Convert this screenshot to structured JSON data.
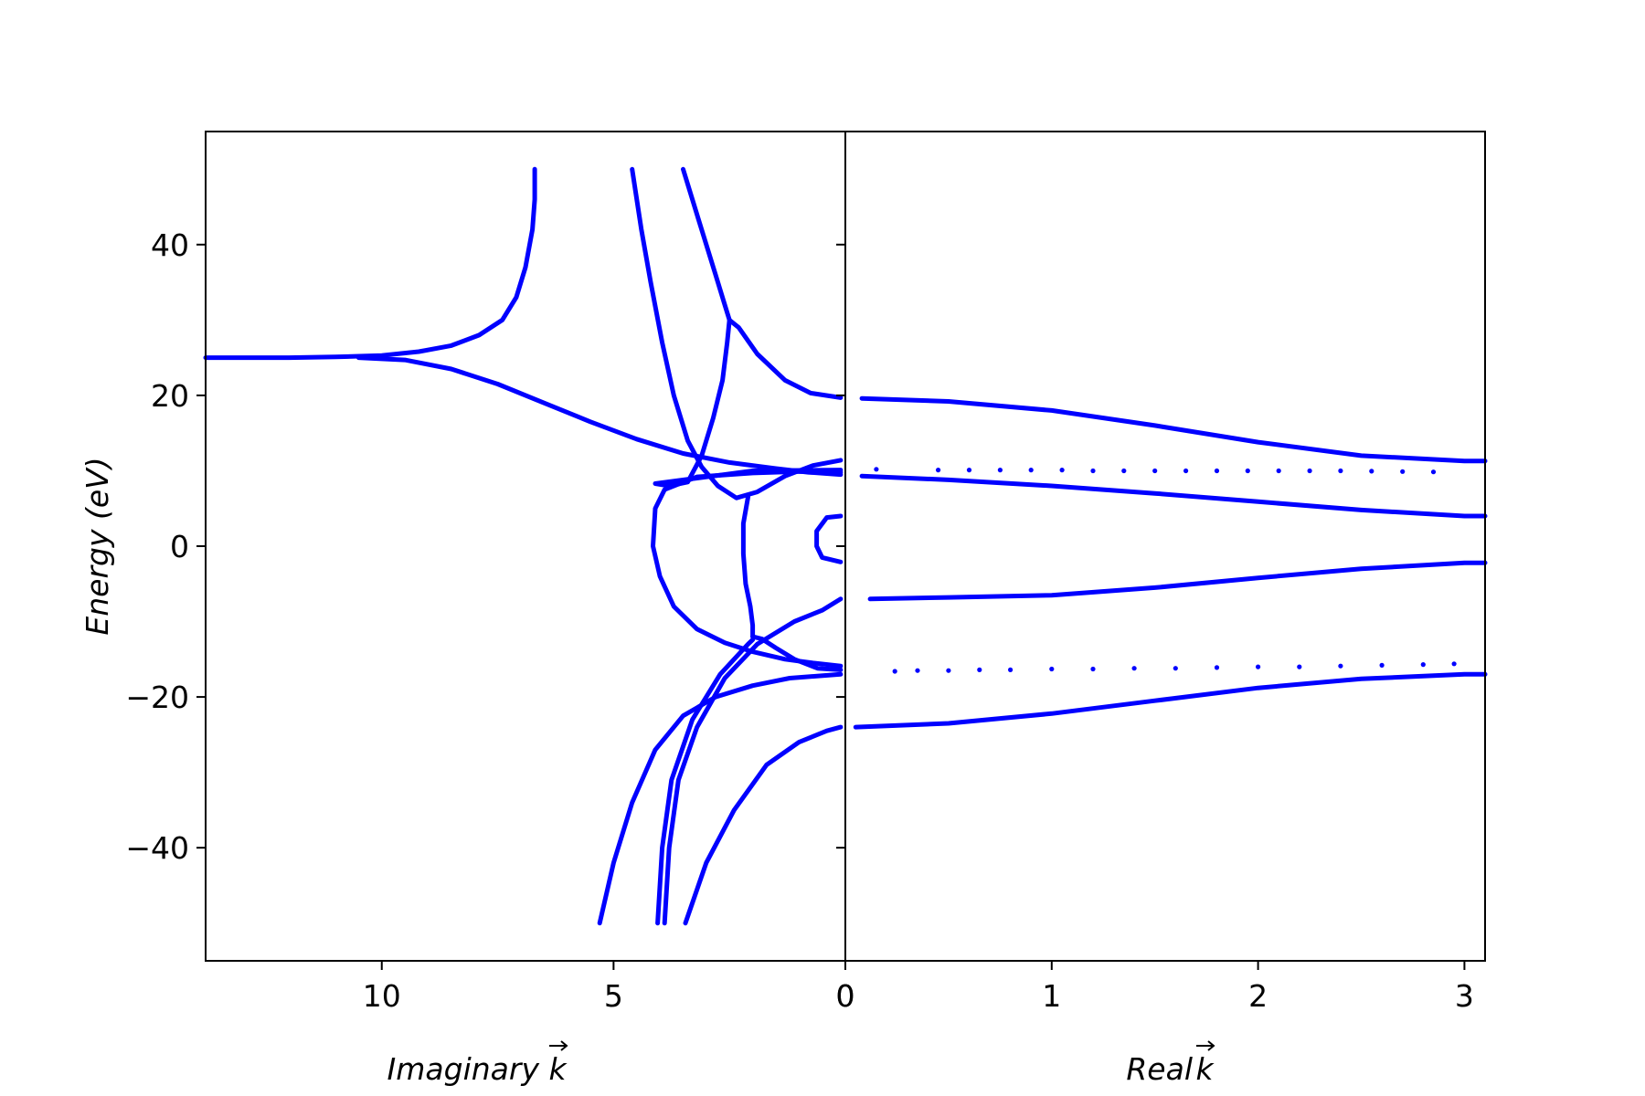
{
  "chart_data": [
    {
      "panel": "left",
      "type": "scatter",
      "xlabel": "Imaginary",
      "xlabel_vector": "k",
      "ylabel": "Energy (eV)",
      "xlim": [
        13.8,
        0
      ],
      "ylim": [
        -55,
        55
      ],
      "x_ticks": [
        10,
        5,
        0
      ],
      "x_tick_labels": [
        "10",
        "5",
        "0"
      ],
      "y_ticks": [
        40,
        20,
        0,
        -20,
        -40
      ],
      "y_tick_labels": [
        "40",
        "20",
        "0",
        "−20",
        "−40"
      ],
      "grid": false,
      "series": [
        {
          "points": [
            [
              6.7,
              50
            ],
            [
              6.7,
              46
            ],
            [
              6.75,
              42
            ],
            [
              6.9,
              37
            ],
            [
              7.1,
              33
            ],
            [
              7.4,
              30
            ],
            [
              7.9,
              28
            ],
            [
              8.5,
              26.6
            ],
            [
              9.2,
              25.8
            ],
            [
              10,
              25.3
            ],
            [
              11,
              25.1
            ],
            [
              12,
              25
            ],
            [
              12.6,
              25
            ],
            [
              13,
              25
            ],
            [
              13.4,
              25
            ],
            [
              13.8,
              25
            ]
          ]
        },
        {
          "points": [
            [
              10.5,
              25
            ],
            [
              9.5,
              24.7
            ],
            [
              8.5,
              23.5
            ],
            [
              7.5,
              21.5
            ],
            [
              6.5,
              19
            ],
            [
              5.5,
              16.5
            ],
            [
              4.5,
              14.2
            ],
            [
              3.5,
              12.3
            ],
            [
              2.5,
              11.1
            ],
            [
              1.5,
              10.3
            ],
            [
              0.8,
              9.8
            ],
            [
              0.1,
              9.5
            ]
          ]
        },
        {
          "points": [
            [
              4.6,
              50
            ],
            [
              4.4,
              42
            ],
            [
              4.2,
              35
            ],
            [
              3.95,
              27
            ],
            [
              3.7,
              20
            ],
            [
              3.4,
              14
            ],
            [
              3.1,
              10.5
            ],
            [
              2.75,
              8
            ],
            [
              2.35,
              6.4
            ],
            [
              1.9,
              7.2
            ],
            [
              1.3,
              9.3
            ],
            [
              0.7,
              10.7
            ],
            [
              0.1,
              11.4
            ]
          ]
        },
        {
          "points": [
            [
              3.5,
              50
            ],
            [
              3.15,
              43
            ],
            [
              2.8,
              36
            ],
            [
              2.6,
              32
            ],
            [
              2.5,
              30
            ],
            [
              2.55,
              27
            ],
            [
              2.65,
              22
            ],
            [
              2.85,
              17
            ],
            [
              3.1,
              12
            ],
            [
              3.4,
              8.5
            ],
            [
              3.8,
              8
            ],
            [
              4.1,
              8.3
            ],
            [
              2,
              10
            ],
            [
              0.1,
              10.1
            ]
          ]
        },
        {
          "points": [
            [
              2.5,
              30
            ],
            [
              2.3,
              29
            ],
            [
              1.9,
              25.5
            ],
            [
              1.3,
              22
            ],
            [
              0.75,
              20.3
            ],
            [
              0.1,
              19.7
            ]
          ]
        },
        {
          "points": [
            [
              0.1,
              9.8
            ],
            [
              1.0,
              9.9
            ],
            [
              2.0,
              9.7
            ],
            [
              3.2,
              9.2
            ],
            [
              3.9,
              7.5
            ],
            [
              4.1,
              5
            ],
            [
              4.15,
              0
            ],
            [
              4,
              -4
            ],
            [
              3.7,
              -8
            ],
            [
              3.2,
              -11
            ],
            [
              2.6,
              -12.8
            ],
            [
              2,
              -14
            ],
            [
              1.3,
              -15
            ],
            [
              0.7,
              -15.5
            ],
            [
              0.1,
              -15.9
            ]
          ]
        },
        {
          "points": [
            [
              2.1,
              6.5
            ],
            [
              2.2,
              3
            ],
            [
              2.2,
              -1
            ],
            [
              2.15,
              -5
            ],
            [
              2.05,
              -8
            ],
            [
              2.0,
              -10.5
            ],
            [
              2.0,
              -12
            ]
          ]
        },
        {
          "points": [
            [
              2,
              -12
            ],
            [
              1.8,
              -12.3
            ],
            [
              1.5,
              -13.5
            ],
            [
              1.1,
              -15
            ],
            [
              0.6,
              -16.2
            ],
            [
              0.1,
              -16.4
            ]
          ]
        },
        {
          "points": [
            [
              0.1,
              4
            ],
            [
              0.4,
              3.8
            ],
            [
              0.62,
              2
            ],
            [
              0.62,
              0
            ],
            [
              0.5,
              -1.5
            ],
            [
              0.1,
              -2.1
            ]
          ]
        },
        {
          "points": [
            [
              5.3,
              -50
            ],
            [
              5.0,
              -42
            ],
            [
              4.6,
              -34
            ],
            [
              4.1,
              -27
            ],
            [
              3.5,
              -22.5
            ],
            [
              2.8,
              -20
            ],
            [
              2.0,
              -18.5
            ],
            [
              1.2,
              -17.5
            ],
            [
              0.1,
              -17
            ]
          ]
        },
        {
          "points": [
            [
              3.9,
              -50
            ],
            [
              3.8,
              -40
            ],
            [
              3.6,
              -31
            ],
            [
              3.2,
              -24
            ],
            [
              2.6,
              -17.5
            ],
            [
              1.9,
              -13
            ],
            [
              1.1,
              -10
            ],
            [
              0.5,
              -8.5
            ],
            [
              0.1,
              -7
            ]
          ]
        },
        {
          "points": [
            [
              4.05,
              -50
            ],
            [
              3.95,
              -40
            ],
            [
              3.75,
              -31
            ],
            [
              3.3,
              -23
            ],
            [
              2.7,
              -17
            ],
            [
              2.1,
              -13
            ],
            [
              2,
              -12.4
            ]
          ]
        },
        {
          "points": [
            [
              3.45,
              -50
            ],
            [
              3.0,
              -42
            ],
            [
              2.4,
              -35
            ],
            [
              1.7,
              -29
            ],
            [
              1.0,
              -26
            ],
            [
              0.4,
              -24.5
            ],
            [
              0.1,
              -24
            ]
          ]
        }
      ]
    },
    {
      "panel": "right",
      "type": "scatter",
      "xlabel": "Real",
      "xlabel_vector": "k",
      "xlim": [
        0,
        3.1
      ],
      "ylim": [
        -55,
        55
      ],
      "x_ticks": [
        0,
        1,
        2,
        3
      ],
      "x_tick_labels": [
        "0",
        "1",
        "2",
        "3"
      ],
      "grid": false,
      "series": [
        {
          "points": [
            [
              0.08,
              19.6
            ],
            [
              0.5,
              19.2
            ],
            [
              1,
              18
            ],
            [
              1.5,
              16
            ],
            [
              2,
              13.8
            ],
            [
              2.5,
              12
            ],
            [
              3,
              11.3
            ],
            [
              3.1,
              11.3
            ]
          ]
        },
        {
          "points": [
            [
              0.08,
              9.3
            ],
            [
              0.5,
              8.8
            ],
            [
              1,
              8
            ],
            [
              1.5,
              7
            ],
            [
              2,
              5.9
            ],
            [
              2.5,
              4.8
            ],
            [
              3,
              4
            ],
            [
              3.1,
              4
            ]
          ]
        },
        {
          "points": [
            [
              0.12,
              -7
            ],
            [
              0.5,
              -6.8
            ],
            [
              1,
              -6.5
            ],
            [
              1.5,
              -5.5
            ],
            [
              2,
              -4.2
            ],
            [
              2.5,
              -3
            ],
            [
              3,
              -2.2
            ],
            [
              3.1,
              -2.2
            ]
          ]
        },
        {
          "points": [
            [
              0.05,
              -24
            ],
            [
              0.5,
              -23.5
            ],
            [
              1,
              -22.2
            ],
            [
              1.5,
              -20.5
            ],
            [
              2,
              -18.8
            ],
            [
              2.5,
              -17.6
            ],
            [
              3,
              -17
            ],
            [
              3.1,
              -17
            ]
          ]
        },
        {
          "points": [
            [
              0.15,
              10.2
            ],
            [
              0.45,
              10.1
            ],
            [
              0.6,
              10.1
            ],
            [
              0.75,
              10.1
            ],
            [
              0.9,
              10.1
            ],
            [
              1.05,
              10.1
            ],
            [
              1.2,
              10
            ],
            [
              1.35,
              10
            ],
            [
              1.5,
              10
            ],
            [
              1.65,
              10
            ],
            [
              1.8,
              10
            ],
            [
              1.95,
              10
            ],
            [
              2.1,
              10
            ],
            [
              2.25,
              10
            ],
            [
              2.4,
              10
            ],
            [
              2.55,
              9.95
            ],
            [
              2.7,
              9.9
            ],
            [
              2.85,
              9.85
            ]
          ]
        },
        {
          "points": [
            [
              0.24,
              -16.6
            ],
            [
              0.35,
              -16.5
            ],
            [
              0.5,
              -16.5
            ],
            [
              0.65,
              -16.4
            ],
            [
              0.8,
              -16.4
            ],
            [
              1,
              -16.3
            ],
            [
              1.2,
              -16.3
            ],
            [
              1.4,
              -16.2
            ],
            [
              1.6,
              -16.2
            ],
            [
              1.8,
              -16.1
            ],
            [
              2,
              -16
            ],
            [
              2.2,
              -16
            ],
            [
              2.4,
              -15.9
            ],
            [
              2.6,
              -15.8
            ],
            [
              2.8,
              -15.7
            ],
            [
              2.95,
              -15.6
            ]
          ]
        }
      ]
    }
  ],
  "style": {
    "mark_color": "#0000ff",
    "axis_color": "#000000"
  }
}
